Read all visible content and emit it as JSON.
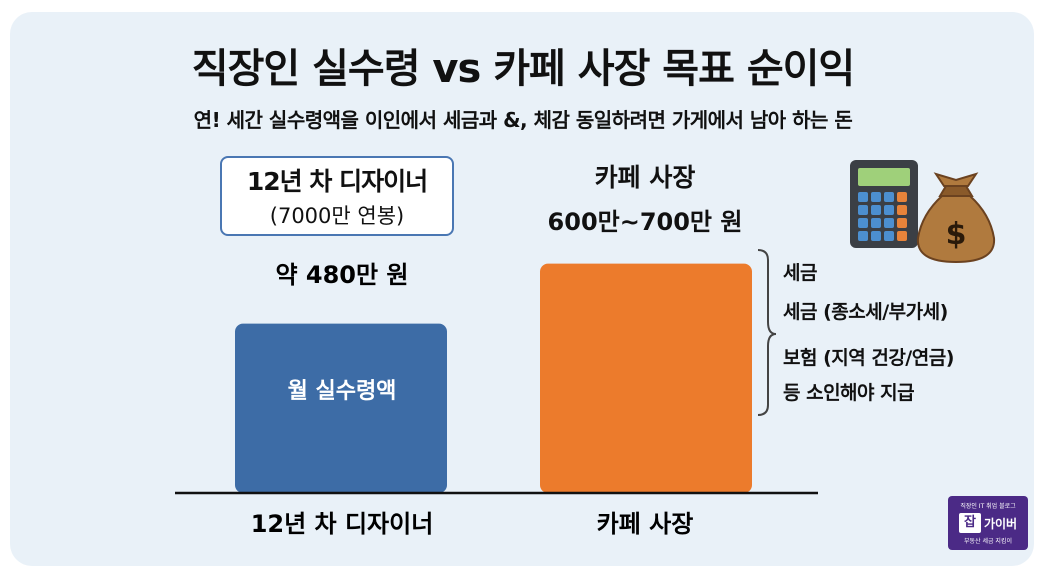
{
  "chart_data": {
    "type": "bar",
    "title": "직장인 실수령 vs 카페 사장 목표 순이익",
    "subtitle": "연! 세간 실수령액을 이인에서 세금과 &, 체감 동일하려면 가게에서 남아 하는 돈",
    "categories": [
      "12년 차 디자이너",
      "카페 사장"
    ],
    "values": [
      480,
      650
    ],
    "value_labels": [
      "약 480만 원",
      "600만~700만 원"
    ],
    "bar_inner_labels": [
      "월 실수령액",
      ""
    ],
    "colors": [
      "#3d6ca6",
      "#ec7b2c"
    ],
    "designer_box": {
      "line1": "12년 차 디자이너",
      "line2": "(7000만 연봉)"
    },
    "cafe_label": "카페 사장",
    "brace_notes": [
      "세금",
      "세금 (종소세/부가세)",
      "보험 (지역 건강/연금)",
      "등 소인해야 지급"
    ],
    "ylim": [
      0,
      700
    ],
    "grid": false
  },
  "icons": {
    "calculator": "calculator-icon",
    "money_bag": "money-bag-icon"
  },
  "logo": {
    "top": "직장인 IT 취업 블로그",
    "mark": "잡",
    "name": "가이버",
    "bottom": "부동산 세금 지킴이"
  }
}
